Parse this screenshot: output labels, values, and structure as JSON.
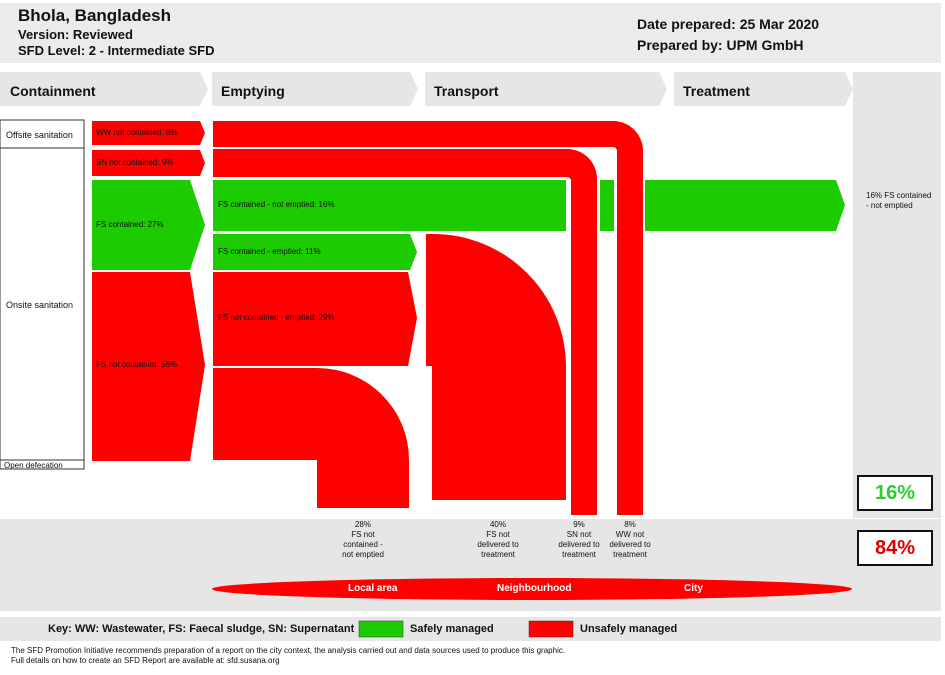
{
  "header": {
    "location": "Bhola, Bangladesh",
    "version": "Version: Reviewed",
    "level": "SFD Level: 2 - Intermediate SFD",
    "date": "Date prepared: 25 Mar 2020",
    "prepared_by": "Prepared by: UPM GmbH"
  },
  "stages": [
    "Containment",
    "Emptying",
    "Transport",
    "Treatment"
  ],
  "categories": {
    "offsite": "Offsite sanitation",
    "onsite": "Onsite sanitation",
    "open": "Open defecation"
  },
  "flows": {
    "ww_not_contained": "WW not contained: 8%",
    "sn_not_contained": "SN not contained: 9%",
    "fs_contained": "FS contained: 27%",
    "fs_not_contained": "FS not contained: 56%",
    "fs_contained_not_emptied": "FS contained - not emptied: 16%",
    "fs_contained_emptied": "FS contained - emptied: 11%",
    "fs_not_contained_emptied": "FS not contained - emptied: 29%",
    "result_safe": "16% FS contained - not emptied"
  },
  "outcomes": [
    {
      "pct": "28%",
      "text": "FS not contained - not emptied"
    },
    {
      "pct": "40%",
      "text": "FS not delivered to treatment"
    },
    {
      "pct": "9%",
      "text": "SN not delivered to treatment"
    },
    {
      "pct": "8%",
      "text": "WW not delivered to treatment"
    }
  ],
  "area_bar": [
    "Local area",
    "Neighbourhood",
    "City"
  ],
  "totals": {
    "safe": "16%",
    "unsafe": "84%"
  },
  "key": {
    "title": "Key: WW: Wastewater, FS: Faecal sludge, SN: Supernatant",
    "safe": "Safely managed",
    "unsafe": "Unsafely managed"
  },
  "footnote": [
    "The SFD Promotion Initiative recommends preparation of a report on the city context, the analysis carried out and data sources used to produce this graphic.",
    "Full details on how to create an SFD Report are available at: sfd.susana.org"
  ],
  "colors": {
    "safe": "#1ccc00",
    "unsafe": "#ff0000",
    "panel": "#e6e6e6",
    "safe_text": "#2ecc2e",
    "unsafe_text": "#e00000"
  }
}
